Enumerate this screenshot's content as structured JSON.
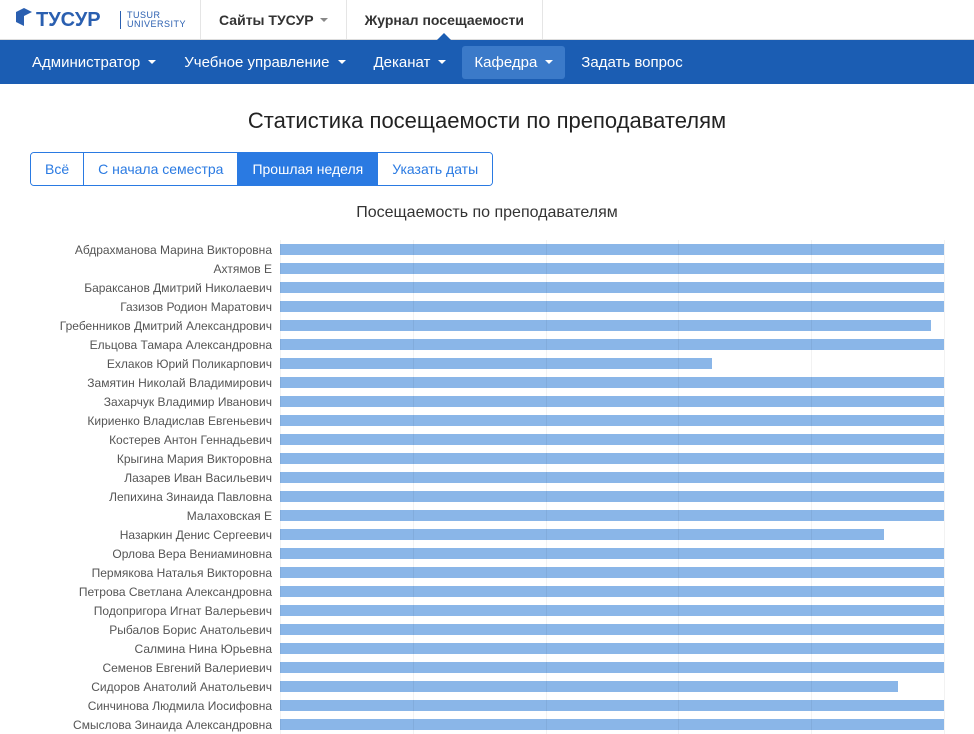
{
  "topbar": {
    "logo_main": "ТУСУР",
    "logo_sub1": "TUSUR",
    "logo_sub2": "UNIVERSITY",
    "sites": "Сайты ТУСУР",
    "journal": "Журнал посещаемости"
  },
  "navbar": {
    "admin": "Администратор",
    "academic": "Учебное управление",
    "deanery": "Деканат",
    "department": "Кафедра",
    "ask": "Задать вопрос"
  },
  "page_title": "Статистика посещаемости по преподавателям",
  "filters": {
    "all": "Всё",
    "since_semester": "С начала семестра",
    "last_week": "Прошлая неделя",
    "specify_dates": "Указать даты"
  },
  "chart": {
    "title": "Посещаемость по преподавателям",
    "bar_color": "#8ab6e8",
    "background_color": "#ffffff",
    "max_value": 100,
    "grid_positions": [
      0,
      20,
      40,
      60,
      80,
      100
    ],
    "rows": [
      {
        "label": "Абдрахманова Марина Викторовна",
        "value": 100
      },
      {
        "label": "Ахтямов Е",
        "value": 100
      },
      {
        "label": "Бараксанов Дмитрий Николаевич",
        "value": 100
      },
      {
        "label": "Газизов Родион Маратович",
        "value": 100
      },
      {
        "label": "Гребенников Дмитрий Александрович",
        "value": 98
      },
      {
        "label": "Ельцова Тамара Александровна",
        "value": 100
      },
      {
        "label": "Ехлаков Юрий Поликарпович",
        "value": 65
      },
      {
        "label": "Замятин Николай Владимирович",
        "value": 100
      },
      {
        "label": "Захарчук Владимир Иванович",
        "value": 100
      },
      {
        "label": "Кириенко Владислав Евгеньевич",
        "value": 100
      },
      {
        "label": "Костерев Антон Геннадьевич",
        "value": 100
      },
      {
        "label": "Крыгина Мария Викторовна",
        "value": 100
      },
      {
        "label": "Лазарев Иван Васильевич",
        "value": 100
      },
      {
        "label": "Лепихина Зинаида Павловна",
        "value": 100
      },
      {
        "label": "Малаховская Е",
        "value": 100
      },
      {
        "label": "Назаркин Денис Сергеевич",
        "value": 91
      },
      {
        "label": "Орлова Вера Вениаминовна",
        "value": 100
      },
      {
        "label": "Пермякова Наталья Викторовна",
        "value": 100
      },
      {
        "label": "Петрова Светлана Александровна",
        "value": 100
      },
      {
        "label": "Подопригора Игнат Валерьевич",
        "value": 100
      },
      {
        "label": "Рыбалов Борис Анатольевич",
        "value": 100
      },
      {
        "label": "Салмина Нина Юрьевна",
        "value": 100
      },
      {
        "label": "Семенов Евгений Валериевич",
        "value": 100
      },
      {
        "label": "Сидоров Анатолий Анатольевич",
        "value": 93
      },
      {
        "label": "Синчинова Людмила Иосифовна",
        "value": 100
      },
      {
        "label": "Смыслова Зинаида Александровна",
        "value": 100
      }
    ]
  }
}
